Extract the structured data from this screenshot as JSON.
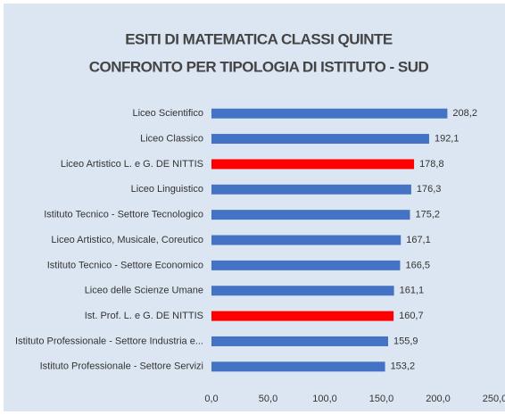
{
  "chart_data": {
    "type": "barh",
    "title": "ESITI DI MATEMATICA CLASSI QUINTE",
    "subtitle": "CONFRONTO PER TIPOLOGIA DI ISTITUTO - SUD",
    "categories": [
      "Liceo Scientifico",
      "Liceo Classico",
      "Liceo Artistico L. e G. DE NITTIS",
      "Liceo Linguistico",
      "Istituto Tecnico - Settore Tecnologico",
      "Liceo Artistico, Musicale, Coreutico",
      "Istituto Tecnico - Settore Economico",
      "Liceo delle Scienze Umane",
      "Ist. Prof. L. e G. DE NITTIS",
      "Istituto Professionale - Settore Industria e...",
      "Istituto Professionale - Settore Servizi"
    ],
    "values": [
      208.2,
      192.1,
      178.8,
      176.3,
      175.2,
      167.1,
      166.5,
      161.1,
      160.7,
      155.9,
      153.2
    ],
    "value_labels": [
      "208,2",
      "192,1",
      "178,8",
      "176,3",
      "175,2",
      "167,1",
      "166,5",
      "161,1",
      "160,7",
      "155,9",
      "153,2"
    ],
    "colors": [
      "#4472c4",
      "#4472c4",
      "#ff0000",
      "#4472c4",
      "#4472c4",
      "#4472c4",
      "#4472c4",
      "#4472c4",
      "#ff0000",
      "#4472c4",
      "#4472c4"
    ],
    "xlim": [
      0,
      250
    ],
    "xticks": [
      {
        "value": 0,
        "label": "0,0"
      },
      {
        "value": 50,
        "label": "50,0"
      },
      {
        "value": 100,
        "label": "100,0"
      },
      {
        "value": 150,
        "label": "150,0"
      },
      {
        "value": 200,
        "label": "200,0"
      },
      {
        "value": 250,
        "label": "250,0"
      }
    ],
    "grid": false
  }
}
